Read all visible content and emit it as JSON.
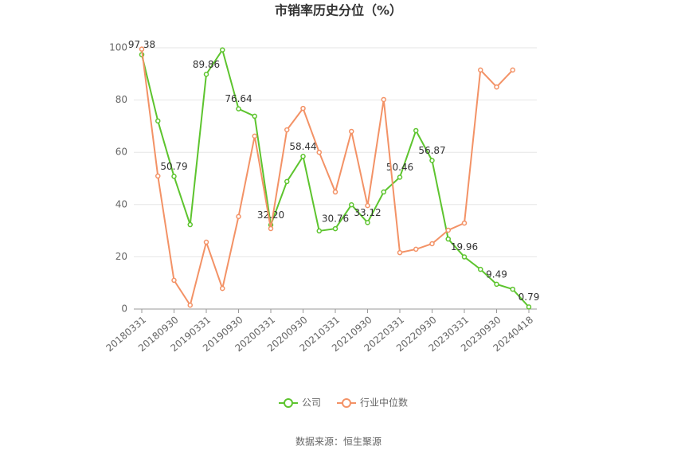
{
  "chart_data": {
    "type": "line",
    "title": "市销率历史分位（%）",
    "categories": [
      "20180331",
      null,
      "20180930",
      null,
      "20190331",
      null,
      "20190930",
      null,
      "20200331",
      null,
      "20200930",
      null,
      "20210331",
      null,
      "20210930",
      null,
      "20220331",
      null,
      "20220930",
      null,
      "20230331",
      null,
      "20230930",
      null,
      "20240418"
    ],
    "series": [
      {
        "name": "公司",
        "color": "#5dc42e",
        "values": [
          97.38,
          72,
          50.79,
          32.3,
          89.86,
          99.2,
          76.64,
          73.8,
          32.2,
          48.8,
          58.44,
          29.9,
          30.76,
          39.9,
          33.12,
          44.8,
          50.46,
          68.3,
          56.87,
          26.8,
          19.96,
          15.2,
          9.49,
          7.6,
          0.79
        ],
        "value_labels": [
          "97.38",
          null,
          "50.79",
          null,
          "89.86",
          null,
          "76.64",
          null,
          "32.20",
          null,
          "58.44",
          null,
          "30.76",
          null,
          "33.12",
          null,
          "50.46",
          null,
          "56.87",
          null,
          "19.96",
          null,
          "9.49",
          null,
          "0.79"
        ]
      },
      {
        "name": "行业中位数",
        "color": "#f39266",
        "values": [
          99.5,
          50.9,
          11,
          1.5,
          25.6,
          7.9,
          35.4,
          66.2,
          30.8,
          68.6,
          76.8,
          60,
          44.8,
          68,
          39.6,
          80.2,
          21.6,
          22.9,
          25,
          30.2,
          32.9,
          91.5,
          85,
          91.5,
          null
        ]
      }
    ],
    "ylim": [
      0,
      100
    ],
    "yticks": [
      0,
      20,
      40,
      60,
      80,
      100
    ],
    "grid": true,
    "source": "数据来源：恒生聚源"
  }
}
